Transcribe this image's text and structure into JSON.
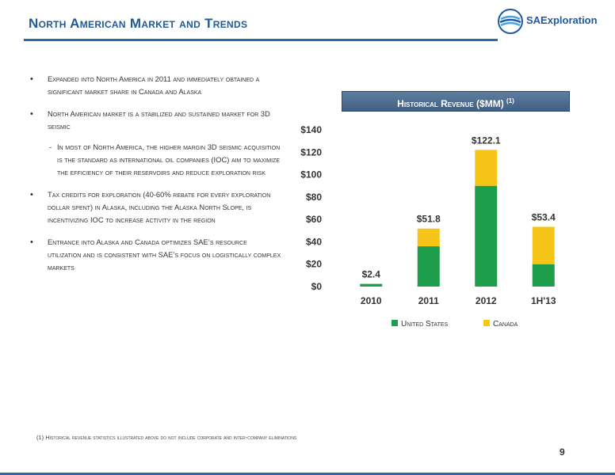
{
  "header": {
    "title": "North American Market and Trends",
    "logo_text": "SAExploration"
  },
  "bullets": [
    "Expanded into North America in 2011 and immediately obtained a significant market share in Canada and Alaska",
    "North American market is a stabilized and sustained market for 3D seismic",
    "Tax credits for exploration (40-60% rebate for every exploration dollar spent) in Alaska, including the Alaska North Slope, is incentivizing IOC to increase activity in the region",
    "Entrance into Alaska and Canada optimizes SAE’s resource utilization and is consistent with SAE’s focus on logistically complex markets"
  ],
  "sub_bullet": "In most of North America, the higher margin 3D seismic acquisition is the standard as international oil companies (IOC) aim to maximize the efficiency of their reservoirs and reduce exploration risk",
  "chart_title": "Historical Revenue ($MM)",
  "chart_title_note": "(1)",
  "footnote": "(1) Historical revenue statistics illustrated above do not include corporate and inter-company eliminations",
  "page_number": "9",
  "colors": {
    "united_states": "#1e9e4a",
    "canada": "#f5c518",
    "title": "#1f5a96"
  },
  "chart_data": {
    "type": "bar",
    "stacked": true,
    "categories": [
      "2010",
      "2011",
      "2012",
      "1H'13"
    ],
    "series": [
      {
        "name": "United States",
        "values": [
          2.4,
          36,
          90,
          20
        ]
      },
      {
        "name": "Canada",
        "values": [
          0,
          15.8,
          32.1,
          33.4
        ]
      }
    ],
    "totals_labels": [
      "$2.4",
      "$51.8",
      "$122.1",
      "$53.4"
    ],
    "y_ticks": [
      "$0",
      "$20",
      "$40",
      "$60",
      "$80",
      "$100",
      "$120",
      "$140"
    ],
    "ylim": [
      0,
      140
    ],
    "grid": false,
    "legend": "bottom"
  }
}
